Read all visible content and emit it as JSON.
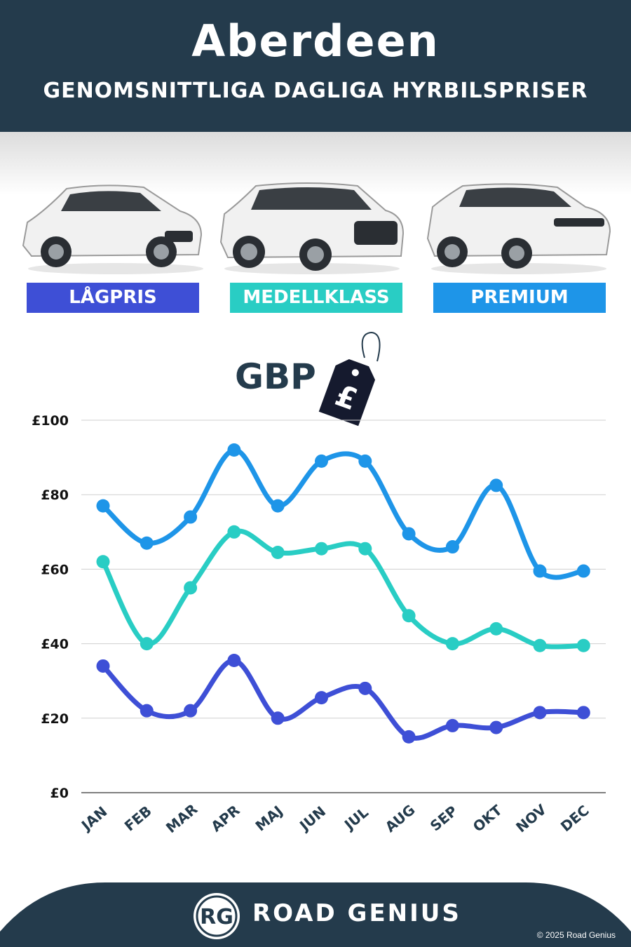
{
  "header": {
    "title": "Aberdeen",
    "subtitle": "GENOMSNITTLIGA DAGLIGA HYRBILSPRISER"
  },
  "categories": [
    {
      "label": "LÅGPRIS",
      "color": "#3e4fd6"
    },
    {
      "label": "MEDELLKLASS",
      "color": "#29cdc4"
    },
    {
      "label": "PREMIUM",
      "color": "#1e95e8"
    }
  ],
  "currency": {
    "label": "GBP",
    "tag_icon": "pound-price-tag-icon",
    "tag_symbol": "£"
  },
  "chart_data": {
    "type": "line",
    "categories": [
      "JAN",
      "FEB",
      "MAR",
      "APR",
      "MAJ",
      "JUN",
      "JUL",
      "AUG",
      "SEP",
      "OKT",
      "NOV",
      "DEC"
    ],
    "y_ticks": [
      "£0",
      "£20",
      "£40",
      "£60",
      "£80",
      "£100"
    ],
    "ylim": [
      0,
      100
    ],
    "grid": true,
    "series": [
      {
        "name": "PREMIUM",
        "color": "#1e95e8",
        "values": [
          77,
          67,
          74,
          92,
          77,
          89,
          89,
          69.5,
          66,
          82.5,
          59.5,
          59.5
        ]
      },
      {
        "name": "MEDELLKLASS",
        "color": "#29cdc4",
        "values": [
          62,
          40,
          55,
          70,
          64.5,
          65.5,
          65.5,
          47.5,
          40,
          44,
          39.5,
          39.5
        ]
      },
      {
        "name": "LÅGPRIS",
        "color": "#3e4fd6",
        "values": [
          34,
          22,
          22,
          35.5,
          20,
          25.5,
          28,
          15,
          18,
          17.5,
          21.5,
          21.5
        ]
      }
    ]
  },
  "footer": {
    "logo_text": "RG",
    "brand": "ROAD GENIUS",
    "copyright": "© 2025 Road Genius"
  }
}
